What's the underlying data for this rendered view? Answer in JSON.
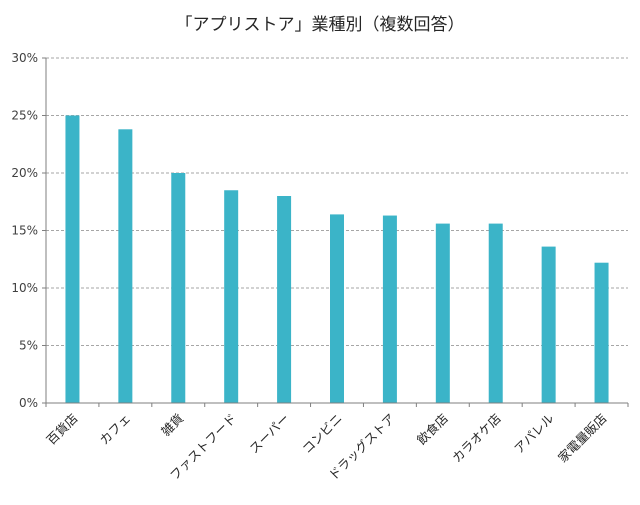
{
  "chart_data": {
    "type": "bar",
    "title": "「アプリストア」業種別（複数回答）",
    "categories": [
      "百貨店",
      "カフェ",
      "雑貨",
      "ファストフード",
      "スーパー",
      "コンビニ",
      "ドラッグストア",
      "飲食店",
      "カラオケ店",
      "アパレル",
      "家電量販店"
    ],
    "values": [
      25.0,
      23.8,
      20.0,
      18.5,
      18.0,
      16.4,
      16.3,
      15.6,
      15.6,
      13.6,
      12.2
    ],
    "yticks": [
      "0%",
      "5%",
      "10%",
      "15%",
      "20%",
      "25%",
      "30%"
    ],
    "ylim": [
      0,
      30
    ],
    "grid": true,
    "bar_color": "#3bb4c8",
    "grid_color": "#a6a6a6",
    "axis_color": "#7f7f7f"
  }
}
